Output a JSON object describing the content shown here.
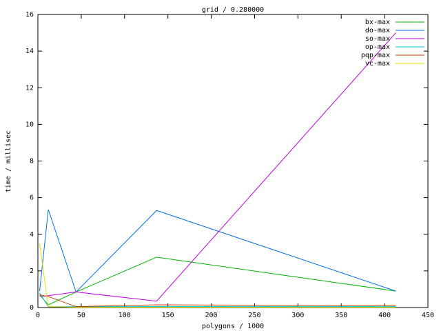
{
  "chart_data": {
    "type": "line",
    "title": "grid / 0.280000",
    "x_label": "polygons / 1000",
    "y_label": "time / millisec",
    "x": [
      2,
      12,
      44,
      137,
      413
    ],
    "series": [
      {
        "name": "bx-max",
        "color": "#00b000",
        "values": [
          0.7,
          0.15,
          0.85,
          2.75,
          0.9
        ]
      },
      {
        "name": "do-max",
        "color": "#0070e0",
        "values": [
          0.9,
          5.35,
          0.85,
          5.3,
          0.9
        ]
      },
      {
        "name": "so-max",
        "color": "#c000e0",
        "values": [
          0.6,
          0.65,
          0.85,
          0.35,
          15.0
        ]
      },
      {
        "name": "op-max",
        "color": "#00c8c8",
        "values": [
          0.8,
          0.05,
          0.05,
          0.05,
          0.05
        ]
      },
      {
        "name": "pqp-max",
        "color": "#c04000",
        "values": [
          0.7,
          0.6,
          0.05,
          0.15,
          0.1
        ]
      },
      {
        "name": "vc-max",
        "color": "#e8e000",
        "values": [
          3.5,
          0.05,
          0.02,
          0.02,
          0.02
        ]
      }
    ],
    "xlim": [
      0,
      450
    ],
    "ylim": [
      0,
      16
    ],
    "xticks": [
      0,
      50,
      100,
      150,
      200,
      250,
      300,
      350,
      400,
      450
    ],
    "yticks": [
      0,
      2,
      4,
      6,
      8,
      10,
      12,
      14,
      16
    ],
    "legend": "top-right"
  }
}
